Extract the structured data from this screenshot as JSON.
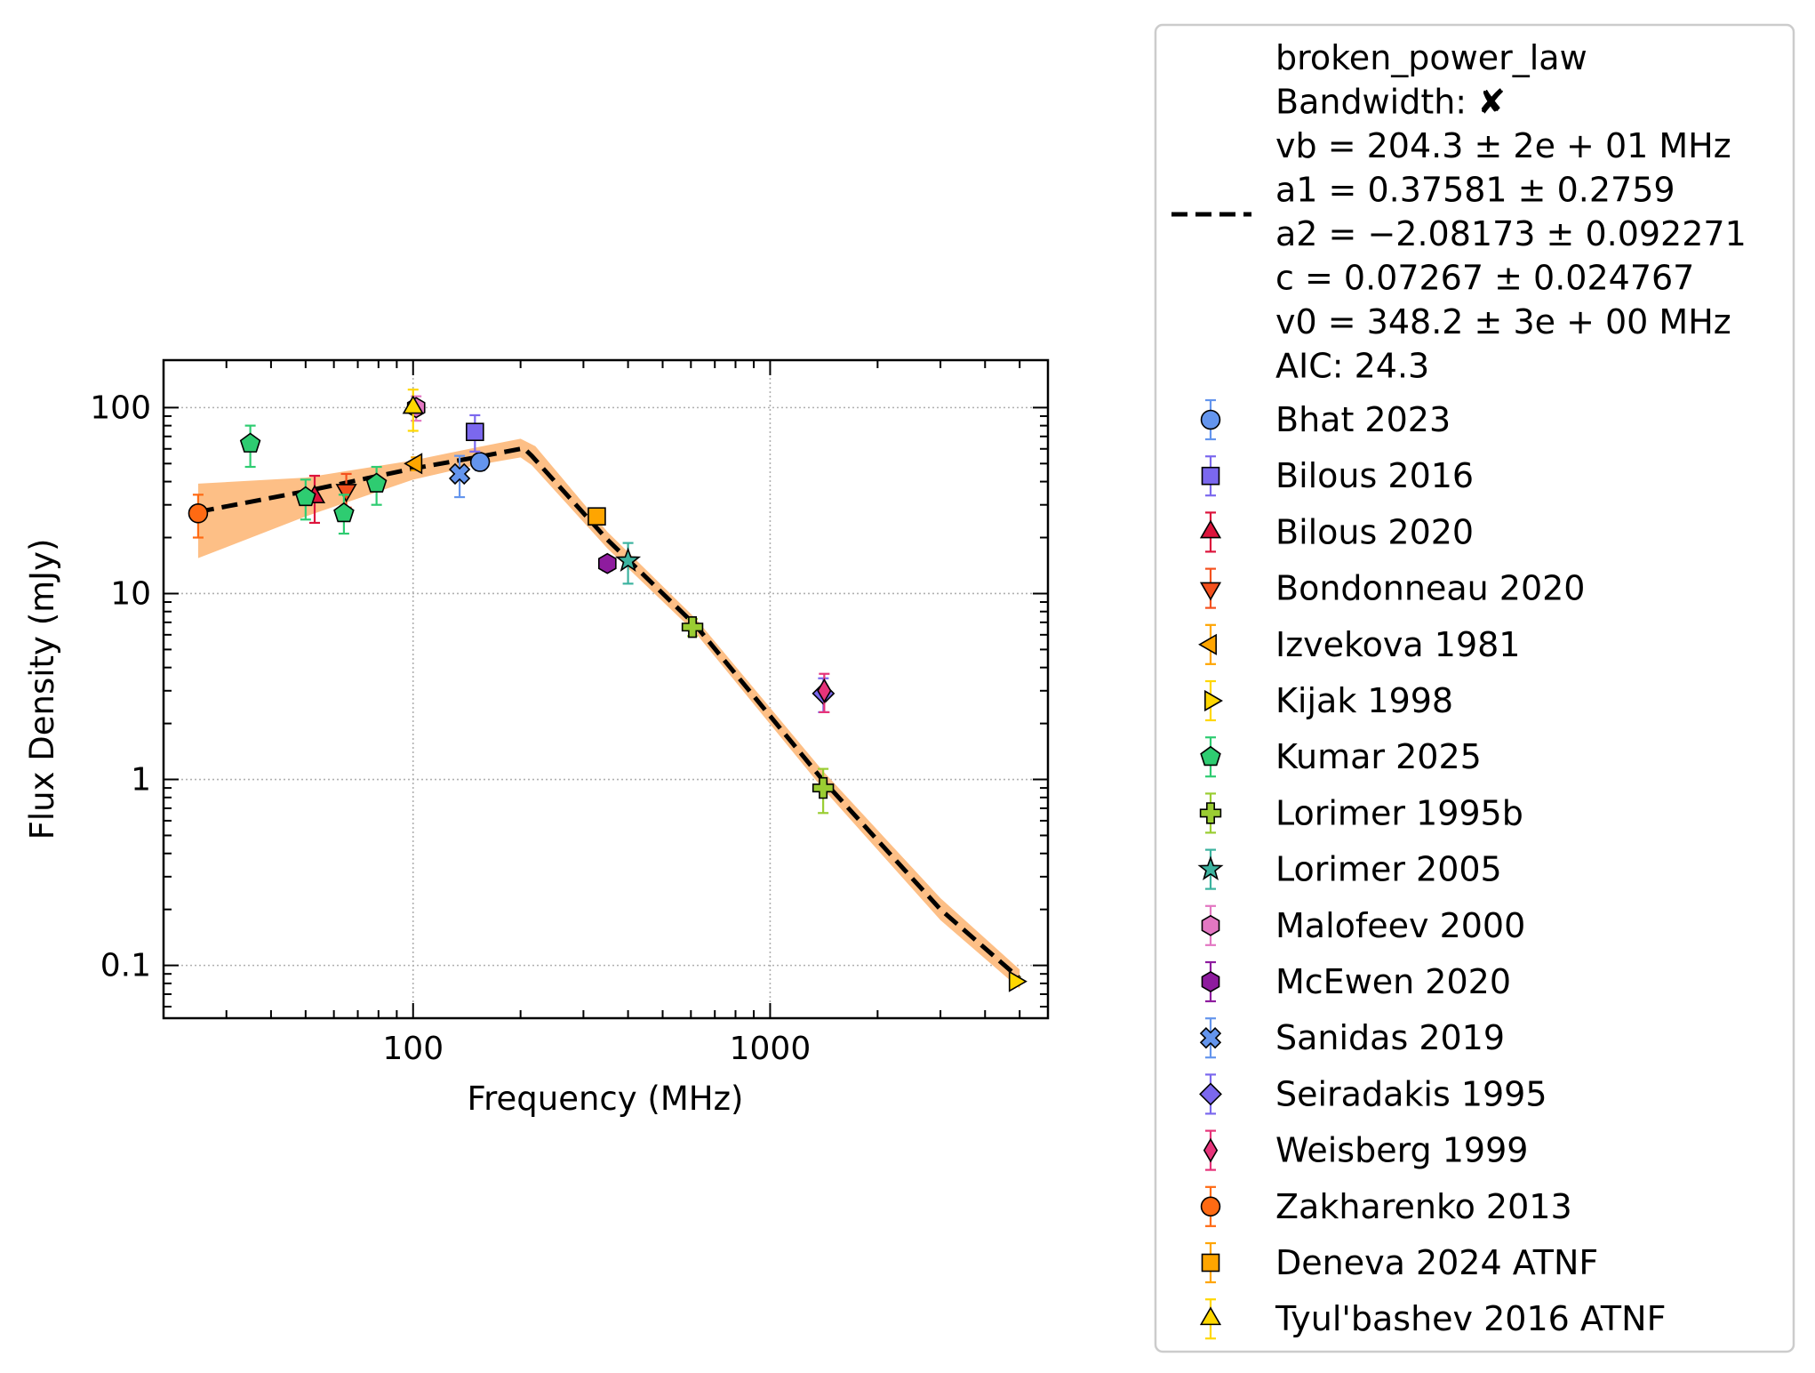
{
  "chart_data": {
    "type": "scatter",
    "xlabel": "Frequency (MHz)",
    "ylabel": "Flux Density (mJy)",
    "xscale": "log",
    "yscale": "log",
    "xlim": [
      20,
      6000
    ],
    "ylim": [
      0.052,
      180
    ],
    "xticks": [
      {
        "value": 100,
        "label": "100"
      },
      {
        "value": 1000,
        "label": "1000"
      }
    ],
    "yticks": [
      {
        "value": 0.1,
        "label": "0.1"
      },
      {
        "value": 1,
        "label": "1"
      },
      {
        "value": 10,
        "label": "10"
      },
      {
        "value": 100,
        "label": "100"
      }
    ],
    "grid": true,
    "legend_position": "outside-right",
    "fit": {
      "name": "broken_power_law",
      "line_style": "dashed",
      "line_color": "#000000",
      "band_color": "#fdbf86",
      "legend_lines": [
        "broken_power_law",
        "Bandwidth: ✘",
        "vb = 204.3 ± 2e + 01 MHz",
        "a1 = 0.37581 ± 0.2759",
        "a2 = −2.08173 ± 0.092271",
        "c = 0.07267 ± 0.024767",
        "v0 = 348.2 ± 3e + 00 MHz",
        "AIC: 24.3"
      ],
      "curve": [
        [
          25,
          27.5
        ],
        [
          50,
          35.5
        ],
        [
          100,
          47
        ],
        [
          150,
          54
        ],
        [
          200,
          60
        ],
        [
          204.3,
          60.5
        ],
        [
          215,
          55
        ],
        [
          350,
          19.5
        ],
        [
          620,
          6.7
        ],
        [
          1400,
          1.0
        ],
        [
          3000,
          0.2
        ],
        [
          5000,
          0.085
        ]
      ],
      "band_upper": [
        [
          25,
          39
        ],
        [
          50,
          42
        ],
        [
          100,
          52
        ],
        [
          150,
          61
        ],
        [
          200,
          68
        ],
        [
          220,
          62
        ],
        [
          350,
          21.5
        ],
        [
          620,
          7.3
        ],
        [
          1400,
          1.12
        ],
        [
          3000,
          0.23
        ],
        [
          5000,
          0.095
        ]
      ],
      "band_lower": [
        [
          25,
          15.5
        ],
        [
          50,
          26
        ],
        [
          100,
          41
        ],
        [
          150,
          49
        ],
        [
          200,
          54
        ],
        [
          215,
          49
        ],
        [
          350,
          17.5
        ],
        [
          620,
          6.1
        ],
        [
          1400,
          0.9
        ],
        [
          3000,
          0.175
        ],
        [
          5000,
          0.075
        ]
      ]
    },
    "series": [
      {
        "name": "Bhat 2023",
        "marker": "circle",
        "color": "#6495ed",
        "points": [
          {
            "x": 154,
            "y": 51,
            "lo": 46,
            "hi": 56
          }
        ]
      },
      {
        "name": "Bilous 2016",
        "marker": "square",
        "color": "#7b68ee",
        "points": [
          {
            "x": 149,
            "y": 74,
            "lo": 58,
            "hi": 91
          }
        ]
      },
      {
        "name": "Bilous 2020",
        "marker": "triangle-up",
        "color": "#dc143c",
        "points": [
          {
            "x": 53,
            "y": 33,
            "lo": 24,
            "hi": 43
          }
        ]
      },
      {
        "name": "Bondonneau 2020",
        "marker": "triangle-down",
        "color": "#f4511e",
        "points": [
          {
            "x": 65,
            "y": 36,
            "lo": 29,
            "hi": 44
          }
        ]
      },
      {
        "name": "Izvekova 1981",
        "marker": "triangle-left",
        "color": "#ffa500",
        "points": [
          {
            "x": 102,
            "y": 50,
            "lo": 46,
            "hi": 54
          }
        ]
      },
      {
        "name": "Kijak 1998",
        "marker": "triangle-right",
        "color": "#ffd700",
        "points": [
          {
            "x": 4850,
            "y": 0.082,
            "lo": 0.078,
            "hi": 0.086
          }
        ]
      },
      {
        "name": "Kumar 2025",
        "marker": "pentagon",
        "color": "#2ecc71",
        "points": [
          {
            "x": 35,
            "y": 64,
            "lo": 48,
            "hi": 80
          },
          {
            "x": 50,
            "y": 33,
            "lo": 25,
            "hi": 41
          },
          {
            "x": 64,
            "y": 27,
            "lo": 21,
            "hi": 34
          },
          {
            "x": 79,
            "y": 39,
            "lo": 30,
            "hi": 48
          }
        ]
      },
      {
        "name": "Lorimer 1995b",
        "marker": "plus",
        "color": "#9acd32",
        "points": [
          {
            "x": 606,
            "y": 6.6,
            "lo": 5.9,
            "hi": 7.3
          },
          {
            "x": 1408,
            "y": 0.9,
            "lo": 0.66,
            "hi": 1.14
          }
        ]
      },
      {
        "name": "Lorimer 2005",
        "marker": "star",
        "color": "#3cb39f",
        "points": [
          {
            "x": 400,
            "y": 15,
            "lo": 11.3,
            "hi": 18.7
          }
        ]
      },
      {
        "name": "Malofeev 2000",
        "marker": "hexagon",
        "color": "#e377c2",
        "points": [
          {
            "x": 102,
            "y": 100,
            "lo": 85,
            "hi": 115
          }
        ]
      },
      {
        "name": "McEwen 2020",
        "marker": "hexagon",
        "color": "#8e1c9e",
        "points": [
          {
            "x": 350,
            "y": 14.5,
            "lo": 13.3,
            "hi": 15.7
          }
        ]
      },
      {
        "name": "Sanidas 2019",
        "marker": "x",
        "color": "#6495ed",
        "points": [
          {
            "x": 135,
            "y": 44,
            "lo": 33,
            "hi": 55
          }
        ]
      },
      {
        "name": "Seiradakis 1995",
        "marker": "diamond",
        "color": "#7b68ee",
        "points": [
          {
            "x": 1410,
            "y": 2.9,
            "lo": 2.3,
            "hi": 3.5
          }
        ]
      },
      {
        "name": "Weisberg 1999",
        "marker": "thin-diamond",
        "color": "#e6347a",
        "points": [
          {
            "x": 1418,
            "y": 3.0,
            "lo": 2.3,
            "hi": 3.7
          }
        ]
      },
      {
        "name": "Zakharenko 2013",
        "marker": "circle",
        "color": "#ff6a13",
        "points": [
          {
            "x": 25,
            "y": 27,
            "lo": 20,
            "hi": 34
          }
        ]
      },
      {
        "name": "Deneva 2024 ATNF",
        "marker": "square",
        "color": "#ffa500",
        "points": [
          {
            "x": 327,
            "y": 26,
            "lo": 25,
            "hi": 27
          }
        ]
      },
      {
        "name": "Tyul'bashev 2016 ATNF",
        "marker": "triangle-up",
        "color": "#ffd700",
        "points": [
          {
            "x": 100,
            "y": 100,
            "lo": 75,
            "hi": 125
          }
        ]
      }
    ]
  }
}
